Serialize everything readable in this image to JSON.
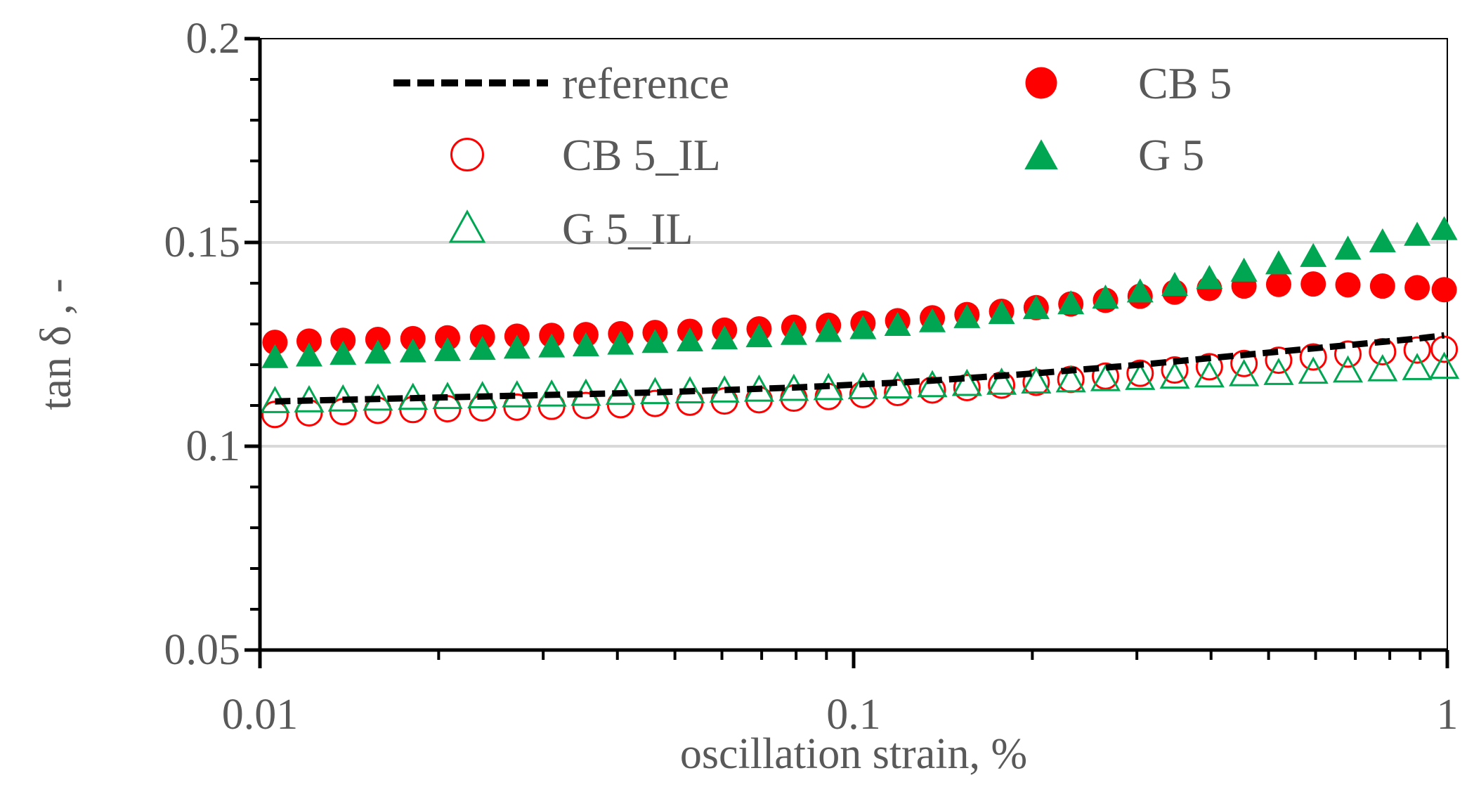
{
  "chart_data": {
    "type": "scatter",
    "title": "",
    "xlabel": "oscillation strain, %",
    "ylabel": "tan δ , -",
    "xscale": "log",
    "xlim": [
      0.01,
      1
    ],
    "ylim": [
      0.05,
      0.2
    ],
    "xticks": [
      {
        "value": 0.01,
        "label": "0.01"
      },
      {
        "value": 0.1,
        "label": "0.1"
      },
      {
        "value": 1,
        "label": "1"
      }
    ],
    "yticks": [
      {
        "value": 0.05,
        "label": "0.05"
      },
      {
        "value": 0.1,
        "label": "0.1"
      },
      {
        "value": 0.15,
        "label": "0.15"
      },
      {
        "value": 0.2,
        "label": "0.2"
      }
    ],
    "gridlines_y": [
      0.1,
      0.15
    ],
    "legend_position": "top (inside plot)",
    "x": [
      0.0106,
      0.0121,
      0.0138,
      0.0158,
      0.0181,
      0.0207,
      0.0237,
      0.0271,
      0.031,
      0.0354,
      0.0405,
      0.0463,
      0.053,
      0.0606,
      0.0693,
      0.0793,
      0.0907,
      0.1037,
      0.1186,
      0.1357,
      0.1552,
      0.1775,
      0.203,
      0.2322,
      0.2656,
      0.3038,
      0.3474,
      0.3974,
      0.4545,
      0.5199,
      0.5946,
      0.6801,
      0.7779,
      0.8897,
      0.9881
    ],
    "series": [
      {
        "name": "reference",
        "marker": "dashed-line",
        "color": "#000000",
        "values": [
          0.111,
          0.1112,
          0.1114,
          0.1116,
          0.1118,
          0.112,
          0.1122,
          0.1124,
          0.1126,
          0.1128,
          0.113,
          0.1132,
          0.1135,
          0.1138,
          0.1141,
          0.1144,
          0.1148,
          0.1152,
          0.1156,
          0.1161,
          0.1167,
          0.1173,
          0.1179,
          0.1186,
          0.1193,
          0.12,
          0.1208,
          0.1216,
          0.1224,
          0.1232,
          0.124,
          0.1248,
          0.1256,
          0.1264,
          0.1272
        ]
      },
      {
        "name": "CB 5",
        "marker": "filled-circle",
        "color": "#ff0000",
        "values": [
          0.1255,
          0.1258,
          0.126,
          0.1262,
          0.1264,
          0.1266,
          0.1268,
          0.127,
          0.1272,
          0.1274,
          0.1276,
          0.1279,
          0.1282,
          0.1285,
          0.1288,
          0.1292,
          0.1297,
          0.1302,
          0.1308,
          0.1315,
          0.1323,
          0.1331,
          0.134,
          0.1349,
          0.1358,
          0.1368,
          0.1378,
          0.1387,
          0.1393,
          0.1397,
          0.1398,
          0.1396,
          0.1393,
          0.1389,
          0.1384
        ]
      },
      {
        "name": "CB 5_IL",
        "marker": "open-circle",
        "color": "#ff0000",
        "values": [
          0.1078,
          0.1082,
          0.1085,
          0.1088,
          0.109,
          0.1092,
          0.1094,
          0.1096,
          0.1098,
          0.11,
          0.1102,
          0.1105,
          0.1108,
          0.1111,
          0.1114,
          0.1118,
          0.1122,
          0.1127,
          0.1132,
          0.1138,
          0.1144,
          0.115,
          0.1157,
          0.1164,
          0.1172,
          0.1179,
          0.1187,
          0.1195,
          0.1203,
          0.1211,
          0.1219,
          0.1226,
          0.1232,
          0.1236,
          0.1238
        ]
      },
      {
        "name": "G 5",
        "marker": "filled-triangle",
        "color": "#00a651",
        "values": [
          0.1218,
          0.1222,
          0.1226,
          0.1229,
          0.1232,
          0.1235,
          0.1238,
          0.1241,
          0.1244,
          0.1247,
          0.1251,
          0.1255,
          0.1259,
          0.1264,
          0.1269,
          0.1275,
          0.1282,
          0.1289,
          0.1297,
          0.1306,
          0.1316,
          0.1326,
          0.1338,
          0.135,
          0.1364,
          0.1379,
          0.1395,
          0.1412,
          0.143,
          0.1448,
          0.1466,
          0.1484,
          0.1502,
          0.1518,
          0.1532
        ]
      },
      {
        "name": "G 5_IL",
        "marker": "open-triangle",
        "color": "#00a651",
        "values": [
          0.111,
          0.1112,
          0.1114,
          0.1116,
          0.1118,
          0.112,
          0.1122,
          0.1124,
          0.1126,
          0.1128,
          0.113,
          0.1132,
          0.1134,
          0.1136,
          0.1138,
          0.114,
          0.1142,
          0.1144,
          0.1146,
          0.1149,
          0.1152,
          0.1155,
          0.1158,
          0.1161,
          0.1164,
          0.1167,
          0.117,
          0.1173,
          0.1176,
          0.1179,
          0.1182,
          0.1185,
          0.1188,
          0.1191,
          0.1194
        ]
      }
    ]
  }
}
